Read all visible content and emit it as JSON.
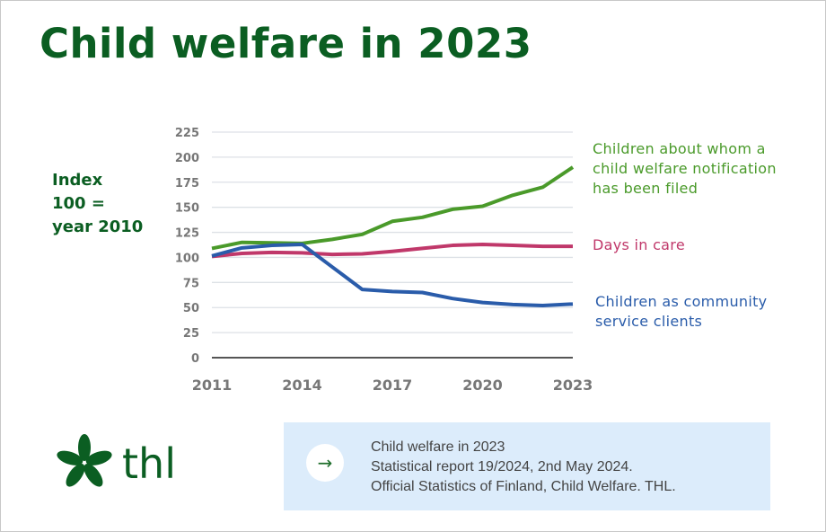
{
  "title": "Child welfare in 2023",
  "colors": {
    "title": "#0b5e22",
    "green": "#4a9a2a",
    "red": "#c0386a",
    "blue": "#2a5caa",
    "panel": "#dcecfb"
  },
  "chart_data": {
    "type": "line",
    "ylabel": "Index\n100 =\nyear 2010",
    "x": [
      2011,
      2012,
      2013,
      2014,
      2015,
      2016,
      2017,
      2018,
      2019,
      2020,
      2021,
      2022,
      2023
    ],
    "x_tick_labels": [
      "2011",
      "2014",
      "2017",
      "2020",
      "2023"
    ],
    "y_ticks": [
      0,
      25,
      50,
      75,
      100,
      125,
      150,
      175,
      200,
      225
    ],
    "ylim": [
      0,
      225
    ],
    "grid": true,
    "legend": "right, inline labels",
    "series": [
      {
        "name": "Children about whom a\nchild welfare notification\nhas been filed",
        "color": "#4a9a2a",
        "values": [
          109,
          115,
          114.5,
          114,
          118,
          123,
          136,
          140,
          148,
          151,
          162,
          170,
          190
        ]
      },
      {
        "name": "Days in care",
        "color": "#c0386a",
        "values": [
          101,
          104,
          105,
          104.5,
          103,
          103.5,
          106,
          109,
          112,
          113,
          112,
          111,
          111
        ]
      },
      {
        "name": "Children as community\nservice clients",
        "color": "#2a5caa",
        "values": [
          101.5,
          109.5,
          112,
          113,
          90.5,
          68,
          66,
          65,
          59,
          55,
          53,
          52,
          53.5
        ]
      }
    ]
  },
  "logo": {
    "text": "thl"
  },
  "info": {
    "arrow_icon": "arrow-right-icon",
    "lines": [
      "Child welfare in 2023",
      "Statistical report 19/2024, 2nd May 2024.",
      "Official Statistics of Finland, Child Welfare. THL."
    ]
  }
}
